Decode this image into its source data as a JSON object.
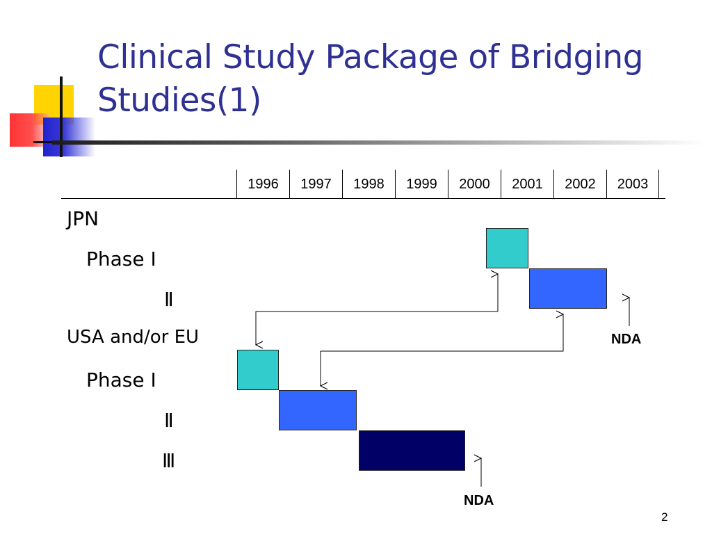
{
  "title": {
    "line1": "Clinical Study Package of Bridging",
    "line2": "Studies(1)"
  },
  "years": [
    "1996",
    "1997",
    "1998",
    "1999",
    "2000",
    "2001",
    "2002",
    "2003"
  ],
  "rows": {
    "jpn_header": "JPN",
    "jpn_phase1": "Phase Ⅰ",
    "jpn_phase2": "Ⅱ",
    "us_eu_header": "USA and/or EU",
    "us_phase1": "Phase Ⅰ",
    "us_phase2": "Ⅱ",
    "us_phase3": "Ⅲ"
  },
  "nda_labels": {
    "jpn": "NDA",
    "us": "NDA"
  },
  "page_number": "2",
  "colors": {
    "title": "#2e3192",
    "phase1": "#33cccc",
    "phase2": "#3366ff",
    "phase3": "#000066",
    "logo_yellow": "#ffd400",
    "logo_red": "#ff2a2a",
    "logo_blue": "#2222cc"
  }
}
